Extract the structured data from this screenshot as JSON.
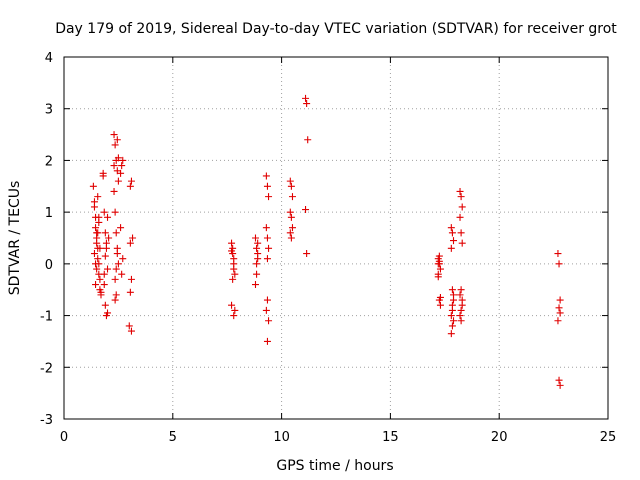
{
  "chart_data": {
    "type": "scatter",
    "title": "Day 179 of 2019, Sidereal Day-to-day VTEC variation (SDTVAR) for receiver grot",
    "xlabel": "GPS time / hours",
    "ylabel": "SDTVAR / TECUs",
    "xlim": [
      0,
      25
    ],
    "ylim": [
      -3,
      4
    ],
    "xticks": [
      0,
      5,
      10,
      15,
      20,
      25
    ],
    "yticks": [
      -3,
      -2,
      -1,
      0,
      1,
      2,
      3,
      4
    ],
    "grid": true,
    "marker": "+",
    "color": "#e00000",
    "series": [
      {
        "name": "SDTVAR",
        "x": [
          1.35,
          1.4,
          1.45,
          1.5,
          1.55,
          1.6,
          1.65,
          1.7,
          1.4,
          1.45,
          1.5,
          1.55,
          1.6,
          1.65,
          1.4,
          1.5,
          1.6,
          1.45,
          1.55,
          1.65,
          1.5,
          1.6,
          1.7,
          1.55,
          1.45,
          1.8,
          1.85,
          1.9,
          1.95,
          2.0,
          1.85,
          1.9,
          1.95,
          2.0,
          2.05,
          1.8,
          1.9,
          2.0,
          1.85,
          1.95,
          2.3,
          2.35,
          2.4,
          2.45,
          2.5,
          2.3,
          2.35,
          2.4,
          2.45,
          2.5,
          2.35,
          2.4,
          2.45,
          2.3,
          2.5,
          2.4,
          2.35,
          2.45,
          2.6,
          2.65,
          2.7,
          2.6,
          2.7,
          2.65,
          3.05,
          3.1,
          3.15,
          3.05,
          3.1,
          3.0,
          3.1,
          3.05,
          7.7,
          7.75,
          7.8,
          7.85,
          7.75,
          7.8,
          7.7,
          7.85,
          7.8,
          7.75,
          7.8,
          7.7,
          8.8,
          8.85,
          8.9,
          8.85,
          8.9,
          8.8,
          8.85,
          8.9,
          9.3,
          9.35,
          9.4,
          9.3,
          9.35,
          9.4,
          9.35,
          9.3,
          9.4,
          9.35,
          9.35,
          10.4,
          10.45,
          10.5,
          10.4,
          10.45,
          10.5,
          10.45,
          10.4,
          11.1,
          11.15,
          11.2,
          11.1,
          11.15,
          17.2,
          17.25,
          17.3,
          17.2,
          17.25,
          17.3,
          17.25,
          17.2,
          17.3,
          17.25,
          17.2,
          17.8,
          17.85,
          17.9,
          17.8,
          17.85,
          17.9,
          17.85,
          17.8,
          17.9,
          17.85,
          17.8,
          17.85,
          17.9,
          18.2,
          18.25,
          18.3,
          18.2,
          18.25,
          18.3,
          18.25,
          18.2,
          18.3,
          18.25,
          18.2,
          18.25,
          18.3,
          22.7,
          22.75,
          22.8,
          22.75,
          22.8,
          22.7,
          22.75,
          22.8
        ],
        "y": [
          1.5,
          1.2,
          0.9,
          0.6,
          0.3,
          0.0,
          -0.3,
          -0.6,
          1.1,
          0.7,
          0.4,
          0.1,
          -0.2,
          -0.5,
          0.2,
          0.5,
          0.8,
          -0.4,
          1.3,
          0.3,
          -0.1,
          0.9,
          -0.55,
          0.6,
          0.0,
          1.7,
          1.0,
          0.6,
          0.3,
          -0.1,
          -0.4,
          -0.8,
          -1.0,
          0.9,
          0.5,
          1.75,
          0.15,
          -0.95,
          -0.2,
          0.4,
          2.5,
          2.3,
          2.0,
          1.8,
          1.6,
          1.4,
          1.0,
          0.6,
          0.3,
          0.0,
          -0.3,
          -0.6,
          2.4,
          1.9,
          2.05,
          -0.1,
          -0.7,
          0.2,
          1.75,
          1.9,
          2.0,
          0.7,
          0.1,
          -0.2,
          1.5,
          1.6,
          0.5,
          0.4,
          -0.3,
          -1.2,
          -1.3,
          -0.55,
          0.4,
          0.2,
          0.0,
          -0.2,
          0.3,
          -0.1,
          -0.8,
          -0.9,
          -1.0,
          -0.3,
          0.1,
          0.25,
          0.5,
          0.3,
          0.1,
          -0.2,
          0.4,
          -0.4,
          0.0,
          0.2,
          1.7,
          1.5,
          1.3,
          0.7,
          0.5,
          0.3,
          -0.7,
          -0.9,
          -1.1,
          -1.5,
          0.1,
          1.6,
          1.5,
          1.3,
          1.0,
          0.9,
          0.7,
          0.5,
          0.6,
          3.2,
          3.1,
          2.4,
          1.05,
          0.2,
          0.1,
          0.0,
          -0.1,
          -0.2,
          -0.7,
          -0.8,
          0.05,
          -0.25,
          -0.65,
          0.15,
          0.0,
          0.7,
          0.6,
          0.45,
          0.3,
          -0.5,
          -0.6,
          -0.8,
          -1.0,
          -1.1,
          -1.2,
          -1.35,
          -0.9,
          -0.7,
          1.4,
          1.3,
          1.1,
          0.9,
          0.6,
          0.4,
          -0.5,
          -0.6,
          -0.8,
          -0.9,
          -1.0,
          -1.1,
          -0.7,
          0.2,
          0.0,
          -0.7,
          -0.85,
          -0.95,
          -1.1,
          -2.25,
          -2.35
        ]
      }
    ]
  }
}
